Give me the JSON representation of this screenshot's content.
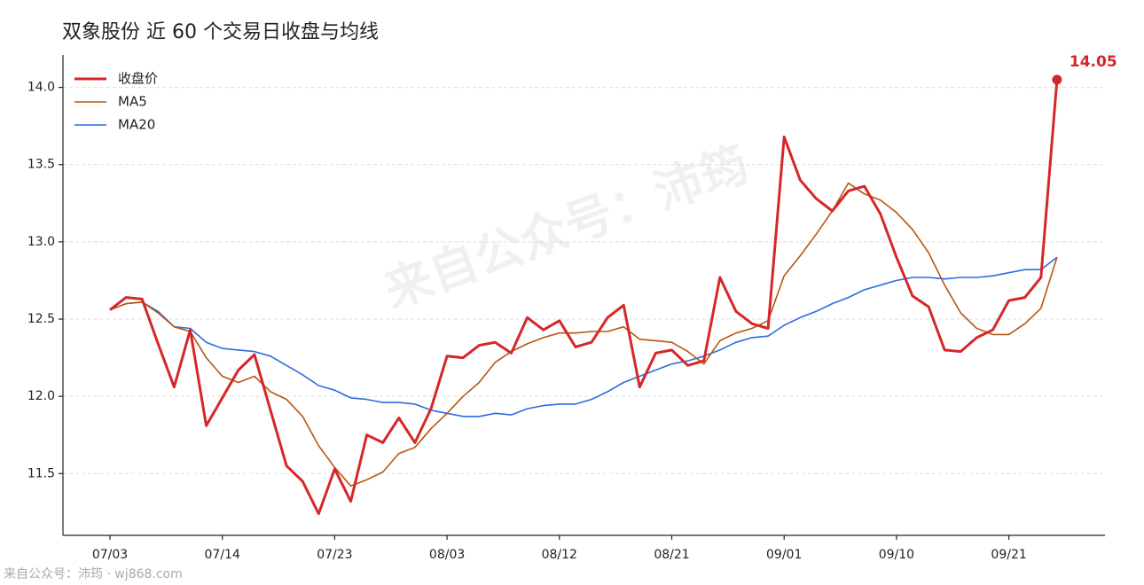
{
  "chart_data": {
    "type": "line",
    "title": "双象股份 近 60 个交易日收盘与均线",
    "watermark": "来自公众号：沛筠",
    "footer": "来自公众号：沛筠 · wj868.com",
    "categories": [
      "07/03",
      null,
      null,
      null,
      null,
      null,
      null,
      "07/14",
      null,
      null,
      null,
      null,
      null,
      null,
      "07/23",
      null,
      null,
      null,
      null,
      null,
      null,
      "08/03",
      null,
      null,
      null,
      null,
      null,
      null,
      "08/12",
      null,
      null,
      null,
      null,
      null,
      null,
      "08/21",
      null,
      null,
      null,
      null,
      null,
      null,
      "09/01",
      null,
      null,
      null,
      null,
      null,
      null,
      "09/10",
      null,
      null,
      null,
      null,
      null,
      null,
      "09/21",
      null,
      null,
      null
    ],
    "series": [
      {
        "name": "收盘价",
        "color": "#d62728",
        "width": 3,
        "values": [
          12.56,
          12.64,
          12.63,
          12.34,
          12.06,
          12.43,
          11.81,
          11.99,
          12.17,
          12.27,
          11.91,
          11.55,
          11.45,
          11.24,
          11.53,
          11.32,
          11.75,
          11.7,
          11.86,
          11.7,
          11.92,
          12.26,
          12.25,
          12.33,
          12.35,
          12.28,
          12.51,
          12.43,
          12.49,
          12.32,
          12.35,
          12.51,
          12.59,
          12.06,
          12.28,
          12.3,
          12.2,
          12.23,
          12.77,
          12.55,
          12.47,
          12.44,
          13.68,
          13.4,
          13.28,
          13.2,
          13.33,
          13.36,
          13.18,
          12.9,
          12.65,
          12.58,
          12.3,
          12.29,
          12.38,
          12.43,
          12.62,
          12.64,
          12.77,
          14.05
        ]
      },
      {
        "name": "MA5",
        "color": "#b8560f",
        "width": 1.6,
        "values": [
          12.56,
          12.6,
          12.61,
          12.54,
          12.45,
          12.42,
          12.25,
          12.13,
          12.09,
          12.13,
          12.03,
          11.98,
          11.87,
          11.68,
          11.54,
          11.42,
          11.46,
          11.51,
          11.63,
          11.67,
          11.79,
          11.89,
          12.0,
          12.09,
          12.22,
          12.29,
          12.34,
          12.38,
          12.41,
          12.41,
          12.42,
          12.42,
          12.45,
          12.37,
          12.36,
          12.35,
          12.29,
          12.21,
          12.36,
          12.41,
          12.44,
          12.49,
          12.78,
          12.91,
          13.05,
          13.2,
          13.38,
          13.31,
          13.27,
          13.19,
          13.08,
          12.93,
          12.72,
          12.54,
          12.44,
          12.4,
          12.4,
          12.47,
          12.57,
          12.9
        ]
      },
      {
        "name": "MA20",
        "color": "#2d6be0",
        "width": 1.6,
        "values": [
          12.56,
          12.6,
          12.61,
          12.55,
          12.45,
          12.44,
          12.35,
          12.31,
          12.3,
          12.29,
          12.26,
          12.2,
          12.14,
          12.07,
          12.04,
          11.99,
          11.98,
          11.96,
          11.96,
          11.95,
          11.91,
          11.89,
          11.87,
          11.87,
          11.89,
          11.88,
          11.92,
          11.94,
          11.95,
          11.95,
          11.98,
          12.03,
          12.09,
          12.13,
          12.17,
          12.21,
          12.23,
          12.26,
          12.3,
          12.35,
          12.38,
          12.39,
          12.46,
          12.51,
          12.55,
          12.6,
          12.64,
          12.69,
          12.72,
          12.75,
          12.77,
          12.77,
          12.76,
          12.77,
          12.77,
          12.78,
          12.8,
          12.82,
          12.82,
          12.9
        ]
      }
    ],
    "ylim": [
      11.1,
      14.21
    ],
    "yticks": [
      11.5,
      {
        "value": 12,
        "label": "12.0"
      },
      12.5,
      {
        "value": 13,
        "label": "13.0"
      },
      13.5,
      {
        "value": 14,
        "label": "14.0"
      }
    ],
    "grid": true,
    "legend": "upper left",
    "last_label_series": 0
  }
}
